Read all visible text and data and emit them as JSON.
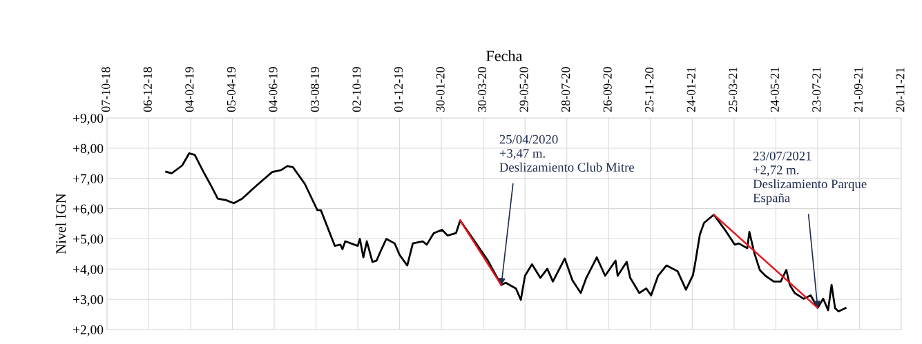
{
  "chart_data": {
    "type": "line",
    "xlabel": "Fecha",
    "ylabel": "Nivel IGN",
    "xlim": [
      "2018-10-07",
      "2021-11-20"
    ],
    "xticks": [
      {
        "value": "2018-10-07",
        "label": "07-10-18"
      },
      {
        "value": "2018-12-06",
        "label": "06-12-18"
      },
      {
        "value": "2019-02-04",
        "label": "04-02-19"
      },
      {
        "value": "2019-04-05",
        "label": "05-04-19"
      },
      {
        "value": "2019-06-04",
        "label": "04-06-19"
      },
      {
        "value": "2019-08-03",
        "label": "03-08-19"
      },
      {
        "value": "2019-10-02",
        "label": "02-10-19"
      },
      {
        "value": "2019-12-01",
        "label": "01-12-19"
      },
      {
        "value": "2020-01-30",
        "label": "30-01-20"
      },
      {
        "value": "2020-03-30",
        "label": "30-03-20"
      },
      {
        "value": "2020-05-29",
        "label": "29-05-20"
      },
      {
        "value": "2020-07-28",
        "label": "28-07-20"
      },
      {
        "value": "2020-09-26",
        "label": "26-09-20"
      },
      {
        "value": "2020-11-25",
        "label": "25-11-20"
      },
      {
        "value": "2021-01-24",
        "label": "24-01-21"
      },
      {
        "value": "2021-03-25",
        "label": "25-03-21"
      },
      {
        "value": "2021-05-24",
        "label": "24-05-21"
      },
      {
        "value": "2021-07-23",
        "label": "23-07-21"
      },
      {
        "value": "2021-09-21",
        "label": "21-09-21"
      },
      {
        "value": "2021-11-20",
        "label": "20-11-21"
      }
    ],
    "ylim": [
      2,
      9
    ],
    "yticks": [
      {
        "value": 2,
        "label": "+2,00"
      },
      {
        "value": 3,
        "label": "+3,00"
      },
      {
        "value": 4,
        "label": "+4,00"
      },
      {
        "value": 5,
        "label": "+5,00"
      },
      {
        "value": 6,
        "label": "+6,00"
      },
      {
        "value": 7,
        "label": "+7,00"
      },
      {
        "value": 8,
        "label": "+8,00"
      },
      {
        "value": 9,
        "label": "+9,00"
      }
    ],
    "grid": true,
    "legend": false,
    "marker": "none",
    "line_style": "solid",
    "series": [
      {
        "color": "#000000",
        "x": [
          "2018-12-31",
          "2019-01-08",
          "2019-01-23",
          "2019-02-02",
          "2019-02-10",
          "2019-02-22",
          "2019-03-04",
          "2019-03-15",
          "2019-03-27",
          "2019-04-07",
          "2019-04-19",
          "2019-05-09",
          "2019-06-01",
          "2019-06-14",
          "2019-06-23",
          "2019-07-01",
          "2019-07-18",
          "2019-08-05",
          "2019-08-10",
          "2019-08-30",
          "2019-09-07",
          "2019-09-10",
          "2019-09-14",
          "2019-10-02",
          "2019-10-05",
          "2019-10-10",
          "2019-10-15",
          "2019-10-23",
          "2019-10-29",
          "2019-11-02",
          "2019-11-12",
          "2019-11-24",
          "2019-12-01",
          "2019-12-12",
          "2019-12-20",
          "2020-01-03",
          "2020-01-09",
          "2020-01-19",
          "2020-01-31",
          "2020-02-08",
          "2020-02-20",
          "2020-02-26",
          "2020-03-19",
          "2020-04-05",
          "2020-04-25",
          "2020-05-01",
          "2020-05-16",
          "2020-05-23",
          "2020-05-29",
          "2020-06-08",
          "2020-06-20",
          "2020-06-30",
          "2020-07-08",
          "2020-07-25",
          "2020-08-05",
          "2020-08-17",
          "2020-08-25",
          "2020-09-09",
          "2020-09-21",
          "2020-10-06",
          "2020-10-09",
          "2020-10-22",
          "2020-10-27",
          "2020-11-09",
          "2020-11-19",
          "2020-11-26",
          "2020-12-06",
          "2020-12-18",
          "2021-01-03",
          "2021-01-15",
          "2021-01-25",
          "2021-01-28",
          "2021-02-04",
          "2021-02-10",
          "2021-02-24",
          "2021-03-12",
          "2021-03-26",
          "2021-04-01",
          "2021-04-13",
          "2021-04-16",
          "2021-04-23",
          "2021-05-01",
          "2021-05-09",
          "2021-05-21",
          "2021-05-31",
          "2021-06-08",
          "2021-06-13",
          "2021-06-20",
          "2021-07-03",
          "2021-07-13",
          "2021-07-23",
          "2021-07-31",
          "2021-08-07",
          "2021-08-12",
          "2021-08-17",
          "2021-08-22",
          "2021-09-01"
        ],
        "values": [
          7.22,
          7.17,
          7.43,
          7.83,
          7.78,
          7.24,
          6.82,
          6.33,
          6.28,
          6.18,
          6.33,
          6.75,
          7.21,
          7.28,
          7.41,
          7.37,
          6.82,
          5.95,
          5.95,
          4.77,
          4.81,
          4.66,
          4.92,
          4.77,
          5.0,
          4.39,
          4.92,
          4.24,
          4.28,
          4.5,
          5.0,
          4.85,
          4.47,
          4.12,
          4.85,
          4.92,
          4.81,
          5.19,
          5.3,
          5.11,
          5.19,
          5.61,
          4.88,
          4.31,
          3.47,
          3.55,
          3.36,
          2.98,
          3.78,
          4.16,
          3.71,
          4.01,
          3.59,
          4.35,
          3.63,
          3.21,
          3.71,
          4.39,
          3.78,
          4.28,
          3.78,
          4.24,
          3.71,
          3.21,
          3.36,
          3.13,
          3.78,
          4.12,
          3.93,
          3.32,
          3.8,
          4.16,
          5.15,
          5.53,
          5.8,
          5.3,
          4.81,
          4.85,
          4.69,
          5.23,
          4.54,
          3.97,
          3.78,
          3.59,
          3.59,
          3.97,
          3.48,
          3.21,
          3.02,
          3.13,
          2.72,
          3.02,
          2.64,
          3.48,
          2.71,
          2.6,
          2.71
        ]
      },
      {
        "type": "line",
        "color": "#e8141c",
        "x": [
          "2020-02-26",
          "2020-04-25"
        ],
        "values": [
          5.61,
          3.47
        ]
      },
      {
        "type": "line",
        "color": "#e8141c",
        "x": [
          "2021-02-24",
          "2021-07-23"
        ],
        "values": [
          5.8,
          2.72
        ]
      }
    ],
    "annotations": [
      {
        "text": "25/04/2020\n+3,47 m.\nDeslizamiento Club Mitre",
        "x": "2020-04-25",
        "y": 3.47
      },
      {
        "text": "23/07/2021\n+2,72 m.\nDeslizamiento Parque\nEspaña",
        "x": "2021-07-23",
        "y": 2.72
      }
    ]
  }
}
